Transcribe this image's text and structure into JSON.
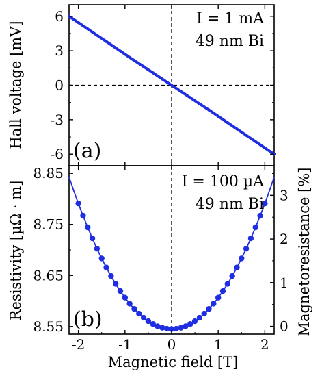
{
  "colors": {
    "data": "#1f2ee0",
    "frame": "#000000",
    "background": "#ffffff"
  },
  "chart_data": [
    {
      "type": "scatter",
      "panel_label": "(a)",
      "annotation_current": "I = 1 mA",
      "annotation_sample": "49 nm Bi",
      "xlabel": "",
      "ylabel": "Hall voltage [mV]",
      "xlim": [
        -2.2,
        2.2
      ],
      "ylim": [
        -7,
        7
      ],
      "yticks": [
        -6,
        -3,
        0,
        3,
        6
      ],
      "ytick_labels": [
        "-6",
        "-3",
        "0",
        "3",
        "6"
      ],
      "zero_lines": true,
      "series": [
        {
          "marker": "dense line of points",
          "x": [
            -2.2,
            -2.0,
            -1.8,
            -1.6,
            -1.4,
            -1.2,
            -1.0,
            -0.8,
            -0.6,
            -0.4,
            -0.2,
            0.0,
            0.2,
            0.4,
            0.6,
            0.8,
            1.0,
            1.2,
            1.4,
            1.6,
            1.8,
            2.0,
            2.2
          ],
          "y": [
            6.0,
            5.45,
            4.9,
            4.35,
            3.8,
            3.25,
            2.7,
            2.15,
            1.62,
            1.08,
            0.54,
            0.0,
            -0.54,
            -1.08,
            -1.62,
            -2.15,
            -2.7,
            -3.25,
            -3.8,
            -4.35,
            -4.9,
            -5.45,
            -6.0
          ]
        }
      ]
    },
    {
      "type": "scatter",
      "panel_label": "(b)",
      "annotation_current": "I = 100 µA",
      "annotation_sample": "49 nm Bi",
      "xlabel": "Magnetic field [T]",
      "ylabel": "Resistivity [µΩ · m]",
      "y2label": "Magnetoresistance [%]",
      "xlim": [
        -2.2,
        2.2
      ],
      "ylim": [
        8.535,
        8.865
      ],
      "y2lim": [
        -0.18,
        3.68
      ],
      "xticks": [
        -2,
        -1,
        0,
        1,
        2
      ],
      "xtick_labels": [
        "-2",
        "-1",
        "0",
        "1",
        "2"
      ],
      "yticks": [
        8.55,
        8.65,
        8.75,
        8.85
      ],
      "ytick_labels": [
        "8.55",
        "8.65",
        "8.75",
        "8.85"
      ],
      "y2ticks": [
        0,
        1,
        2,
        3
      ],
      "y2tick_labels": [
        "0",
        "1",
        "2",
        "3"
      ],
      "series": [
        {
          "marker": "filled circles on fitted parabola",
          "x": [
            -2.0,
            -1.9,
            -1.8,
            -1.7,
            -1.6,
            -1.5,
            -1.4,
            -1.3,
            -1.2,
            -1.1,
            -1.0,
            -0.9,
            -0.8,
            -0.7,
            -0.6,
            -0.5,
            -0.4,
            -0.3,
            -0.2,
            -0.1,
            0.0,
            0.1,
            0.2,
            0.3,
            0.4,
            0.5,
            0.6,
            0.7,
            0.8,
            0.9,
            1.0,
            1.1,
            1.2,
            1.3,
            1.4,
            1.5,
            1.6,
            1.7,
            1.8,
            1.9,
            2.0
          ],
          "fit_min": 8.545,
          "fit_curvature": 0.0615
        }
      ]
    }
  ]
}
